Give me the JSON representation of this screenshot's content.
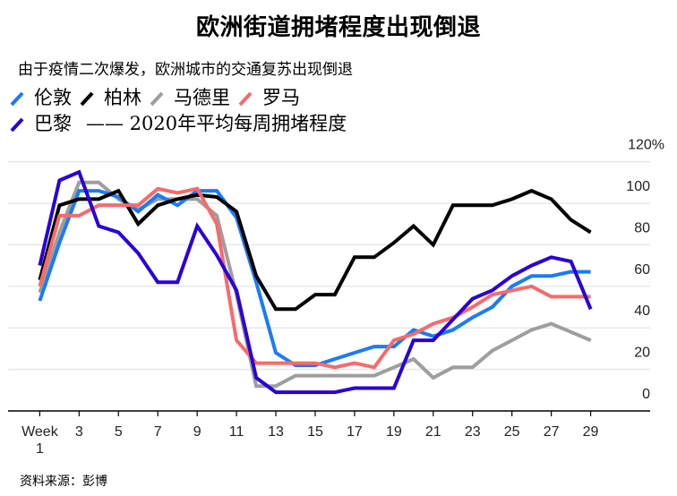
{
  "title": "欧洲街道拥堵程度出现倒退",
  "subtitle": "由于疫情二次爆发，欧洲城市的交通复苏出现倒退",
  "source": "资料来源：彭博",
  "legend_note": "—— 2020年平均每周拥堵程度",
  "chart_data": {
    "type": "line",
    "title": "欧洲街道拥堵程度出现倒退",
    "subtitle": "由于疫情二次爆发，欧洲城市的交通复苏出现倒退",
    "xlabel": "Week",
    "ylabel": "2020年平均每周拥堵程度",
    "x": [
      1,
      2,
      3,
      4,
      5,
      6,
      7,
      8,
      9,
      10,
      11,
      12,
      13,
      14,
      15,
      16,
      17,
      18,
      19,
      20,
      21,
      22,
      23,
      24,
      25,
      26,
      27,
      28,
      29
    ],
    "xticks": [
      1,
      3,
      5,
      7,
      9,
      11,
      13,
      15,
      17,
      19,
      21,
      23,
      25,
      27,
      29
    ],
    "xtick_labels": [
      "Week\n1",
      "3",
      "5",
      "7",
      "9",
      "11",
      "13",
      "15",
      "17",
      "19",
      "21",
      "23",
      "25",
      "27",
      "29"
    ],
    "yticks": [
      0,
      20,
      40,
      60,
      80,
      100,
      120
    ],
    "ytick_labels": [
      "0",
      "20",
      "40",
      "60",
      "80",
      "100",
      "120%"
    ],
    "ylim": [
      0,
      120
    ],
    "xlim": [
      1,
      29
    ],
    "grid": true,
    "legend_position": "top-left",
    "series": [
      {
        "name": "马德里",
        "color": "#9e9e9e",
        "values": [
          57,
          86,
          110,
          110,
          102,
          97,
          102,
          102,
          102,
          94,
          56,
          12,
          12,
          17,
          17,
          17,
          17,
          17,
          21,
          25,
          16,
          21,
          21,
          29,
          34,
          39,
          42,
          38,
          34
        ]
      },
      {
        "name": "伦敦",
        "color": "#1a7cf5",
        "values": [
          53,
          81,
          106,
          106,
          103,
          96,
          104,
          99,
          106,
          106,
          93,
          62,
          28,
          22,
          22,
          25,
          28,
          31,
          31,
          39,
          36,
          39,
          45,
          50,
          60,
          65,
          65,
          67,
          67
        ]
      },
      {
        "name": "柏林",
        "color": "#000000",
        "values": [
          63,
          99,
          102,
          102,
          106,
          90,
          99,
          102,
          104,
          103,
          96,
          65,
          49,
          49,
          56,
          56,
          74,
          74,
          81,
          89,
          80,
          99,
          99,
          99,
          102,
          106,
          102,
          92,
          86
        ]
      },
      {
        "name": "罗马",
        "color": "#f86a6a",
        "values": [
          60,
          94,
          94,
          99,
          99,
          99,
          107,
          105,
          107,
          90,
          34,
          23,
          23,
          23,
          23,
          21,
          23,
          21,
          34,
          37,
          42,
          45,
          50,
          56,
          58,
          60,
          55,
          55,
          55
        ]
      },
      {
        "name": "巴黎",
        "color": "#2a00d8",
        "values": [
          70,
          111,
          115,
          89,
          86,
          76,
          62,
          62,
          89,
          75,
          58,
          16,
          9,
          9,
          9,
          9,
          11,
          11,
          11,
          34,
          34,
          44,
          54,
          58,
          65,
          70,
          74,
          72,
          49
        ]
      }
    ]
  },
  "legend": {
    "row1": [
      {
        "name": "伦敦",
        "color": "#1a7cf5"
      },
      {
        "name": "柏林",
        "color": "#000000"
      },
      {
        "name": "马德里",
        "color": "#9e9e9e"
      },
      {
        "name": "罗马",
        "color": "#f86a6a"
      }
    ],
    "row2": [
      {
        "name": "巴黎",
        "color": "#2a00d8"
      }
    ]
  }
}
